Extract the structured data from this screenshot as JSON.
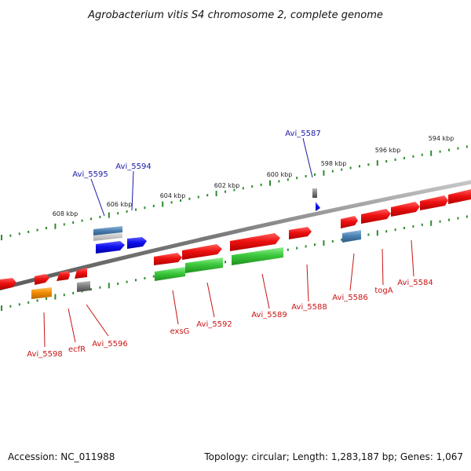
{
  "title": "Agrobacterium vitis S4 chromosome 2, complete genome",
  "footer": {
    "accession": "Accession: NC_011988",
    "topology": "Topology: circular; Length: 1,283,187 bp; Genes: 1,067"
  },
  "scale_labels": [
    "594 kbp",
    "596 kbp",
    "598 kbp",
    "600 kbp",
    "602 kbp",
    "604 kbp",
    "606 kbp",
    "608 kbp"
  ],
  "gene_labels_top": [
    "Avi_5595",
    "Avi_5594",
    "Avi_5587"
  ],
  "gene_labels_bottom": [
    "Avi_5584",
    "togA",
    "Avi_5586",
    "Avi_5588",
    "Avi_5589",
    "Avi_5592",
    "exsG",
    "Avi_5596",
    "ecfR",
    "Avi_5598"
  ],
  "colors": {
    "backbone": "#8a8a8a",
    "scale": "#2e8b2e",
    "gene_red": "#ee1111",
    "gene_green": "#3cc83c",
    "gene_blue": "#1010ee",
    "gene_steel": "#4a7fb0",
    "gene_orange": "#f08c00",
    "gene_gray": "#7a7a7a",
    "label_top": "#1a1aa6",
    "label_bottom": "#c81414"
  }
}
